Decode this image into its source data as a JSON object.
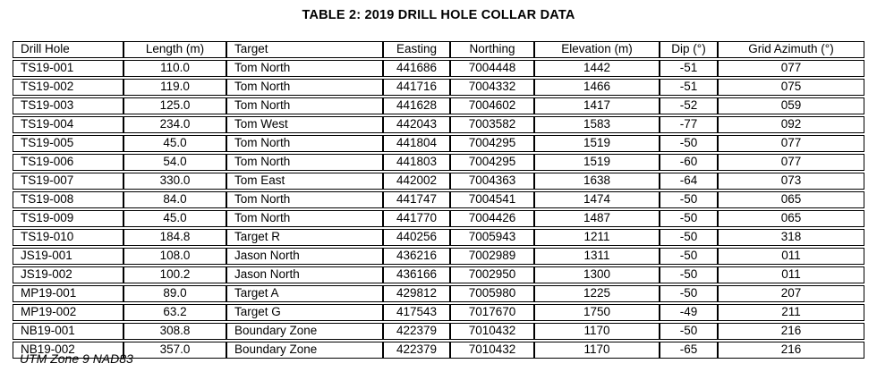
{
  "title": "TABLE 2: 2019 DRILL HOLE COLLAR DATA",
  "footnote": "UTM Zone 9 NAD83",
  "table": {
    "columns": [
      {
        "label": "Drill Hole",
        "align": "left"
      },
      {
        "label": "Length (m)",
        "align": "center"
      },
      {
        "label": "Target",
        "align": "left"
      },
      {
        "label": "Easting",
        "align": "center"
      },
      {
        "label": "Northing",
        "align": "center"
      },
      {
        "label": "Elevation (m)",
        "align": "center"
      },
      {
        "label": "Dip (°)",
        "align": "center"
      },
      {
        "label": "Grid Azimuth (°)",
        "align": "center"
      }
    ],
    "rows": [
      [
        "TS19-001",
        "110.0",
        "Tom North",
        "441686",
        "7004448",
        "1442",
        "-51",
        "077"
      ],
      [
        "TS19-002",
        "119.0",
        "Tom North",
        "441716",
        "7004332",
        "1466",
        "-51",
        "075"
      ],
      [
        "TS19-003",
        "125.0",
        "Tom North",
        "441628",
        "7004602",
        "1417",
        "-52",
        "059"
      ],
      [
        "TS19-004",
        "234.0",
        "Tom West",
        "442043",
        "7003582",
        "1583",
        "-77",
        "092"
      ],
      [
        "TS19-005",
        "45.0",
        "Tom North",
        "441804",
        "7004295",
        "1519",
        "-50",
        "077"
      ],
      [
        "TS19-006",
        "54.0",
        "Tom North",
        "441803",
        "7004295",
        "1519",
        "-60",
        "077"
      ],
      [
        "TS19-007",
        "330.0",
        "Tom East",
        "442002",
        "7004363",
        "1638",
        "-64",
        "073"
      ],
      [
        "TS19-008",
        "84.0",
        "Tom North",
        "441747",
        "7004541",
        "1474",
        "-50",
        "065"
      ],
      [
        "TS19-009",
        "45.0",
        "Tom North",
        "441770",
        "7004426",
        "1487",
        "-50",
        "065"
      ],
      [
        "TS19-010",
        "184.8",
        "Target R",
        "440256",
        "7005943",
        "1211",
        "-50",
        "318"
      ],
      [
        "JS19-001",
        "108.0",
        "Jason North",
        "436216",
        "7002989",
        "1311",
        "-50",
        "011"
      ],
      [
        "JS19-002",
        "100.2",
        "Jason North",
        "436166",
        "7002950",
        "1300",
        "-50",
        "011"
      ],
      [
        "MP19-001",
        "89.0",
        "Target A",
        "429812",
        "7005980",
        "1225",
        "-50",
        "207"
      ],
      [
        "MP19-002",
        "63.2",
        "Target G",
        "417543",
        "7017670",
        "1750",
        "-49",
        "211"
      ],
      [
        "NB19-001",
        "308.8",
        "Boundary Zone",
        "422379",
        "7010432",
        "1170",
        "-50",
        "216"
      ],
      [
        "NB19-002",
        "357.0",
        "Boundary Zone",
        "422379",
        "7010432",
        "1170",
        "-65",
        "216"
      ]
    ]
  }
}
